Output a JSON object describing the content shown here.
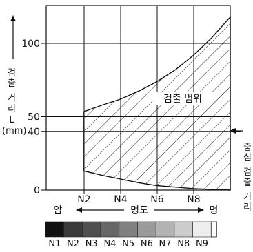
{
  "chart_data": {
    "type": "area",
    "x_categories": [
      "N2",
      "N4",
      "N6",
      "N8"
    ],
    "y_ticks": [
      0,
      40,
      50,
      100
    ],
    "ylim": [
      0,
      115
    ],
    "y_axis_label_chars": [
      "검",
      "출",
      "거",
      "리",
      "L",
      "(mm)"
    ],
    "region_label": "검출 범위",
    "right_annotation_chars": [
      "중",
      "심",
      "검",
      "출",
      "거",
      "리"
    ],
    "reference_line": 40,
    "upper_curve": [
      {
        "x": 1.95,
        "y": 53
      },
      {
        "x": 2,
        "y": 53.5
      },
      {
        "x": 3,
        "y": 58
      },
      {
        "x": 4,
        "y": 62
      },
      {
        "x": 5,
        "y": 67.5
      },
      {
        "x": 6,
        "y": 74
      },
      {
        "x": 7,
        "y": 82
      },
      {
        "x": 8,
        "y": 92
      },
      {
        "x": 9,
        "y": 104
      },
      {
        "x": 10,
        "y": 118
      }
    ],
    "lower_curve": [
      {
        "x": 10,
        "y": 0
      },
      {
        "x": 9,
        "y": 0.5
      },
      {
        "x": 8,
        "y": 1
      },
      {
        "x": 7,
        "y": 2
      },
      {
        "x": 6,
        "y": 3
      },
      {
        "x": 5,
        "y": 5
      },
      {
        "x": 4,
        "y": 7.5
      },
      {
        "x": 3,
        "y": 10
      },
      {
        "x": 2,
        "y": 13
      },
      {
        "x": 1.95,
        "y": 13
      }
    ]
  },
  "brightness": {
    "dark_label": "암",
    "bright_label": "명",
    "axis_title": "명도"
  },
  "gray_scale": {
    "labels": [
      "N1",
      "N2",
      "N3",
      "N4",
      "N5",
      "N6",
      "N7",
      "N8",
      "N9"
    ],
    "colors": [
      "#111111",
      "#3a3a3a",
      "#4f4f4f",
      "#676767",
      "#808080",
      "#9a9a9a",
      "#b3b3b3",
      "#cccccc",
      "#eeeeee"
    ]
  }
}
